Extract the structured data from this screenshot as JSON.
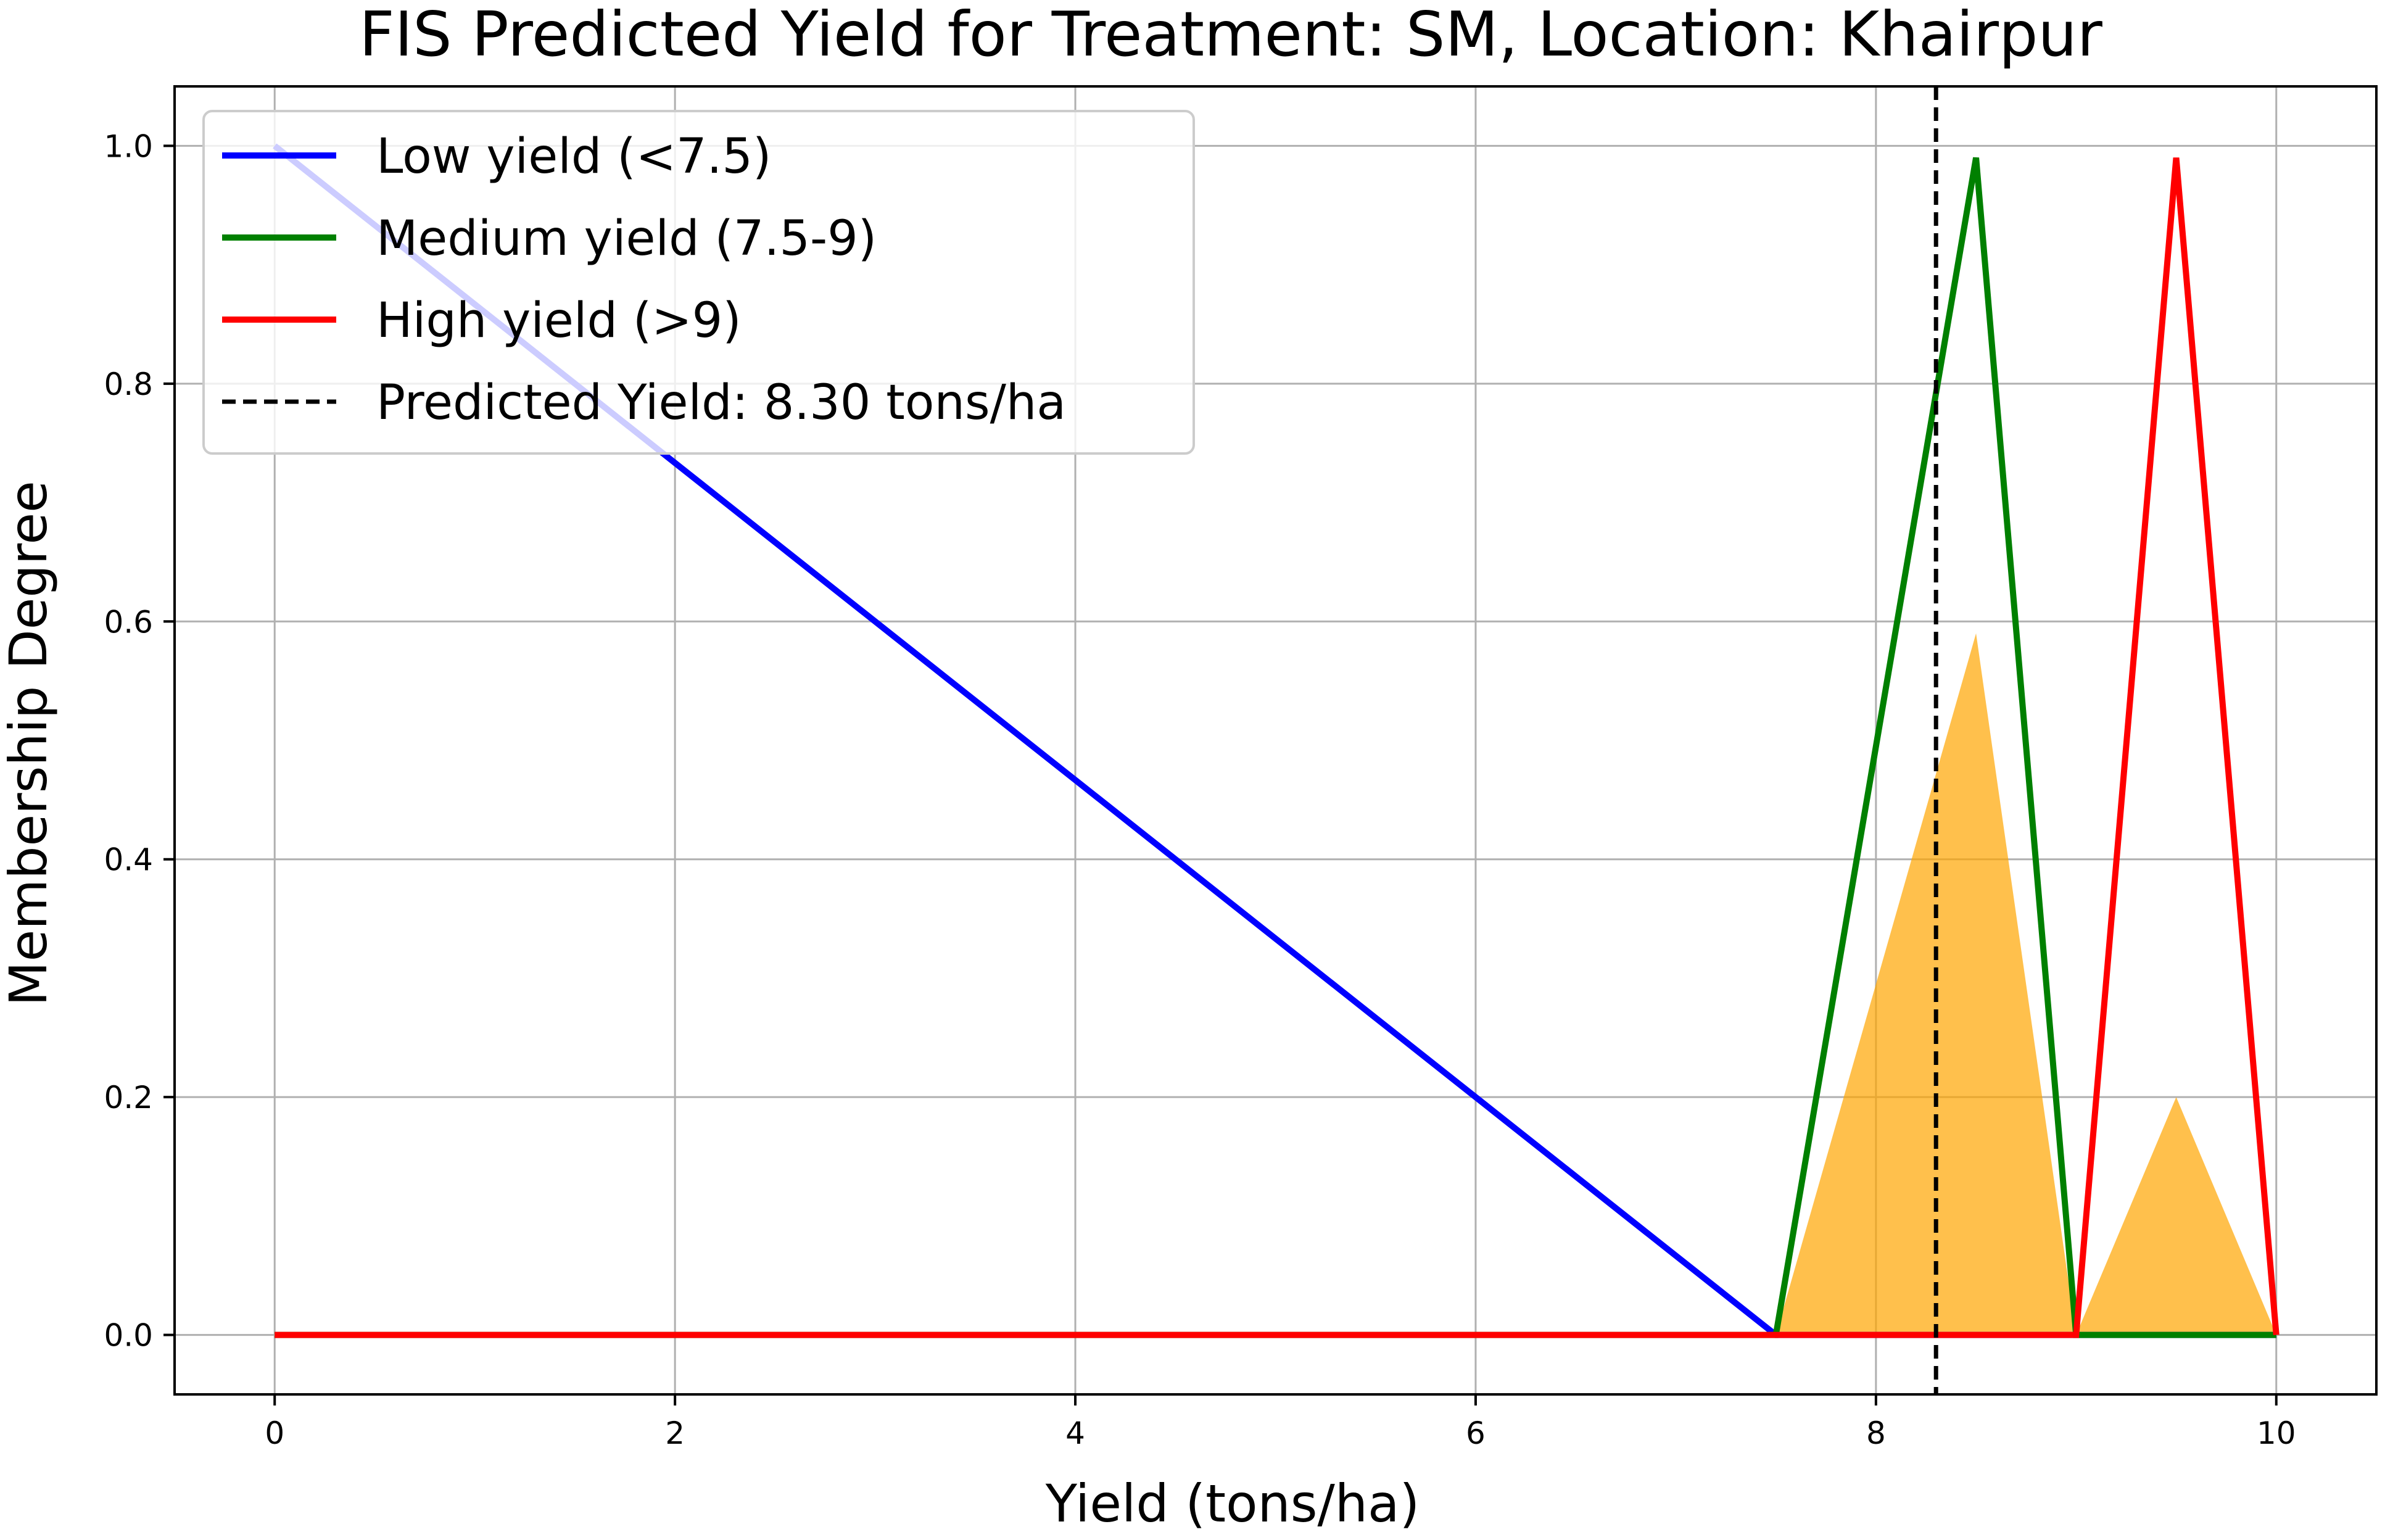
{
  "chart_data": {
    "type": "line",
    "title": "FIS Predicted Yield for Treatment: SM, Location: Khairpur",
    "xlabel": "Yield (tons/ha)",
    "ylabel": "Membership Degree",
    "xlim": [
      -0.5,
      10.5
    ],
    "ylim": [
      -0.05,
      1.05
    ],
    "x_ticks": [
      0,
      2,
      4,
      6,
      8,
      10
    ],
    "x_tick_labels": [
      "0",
      "2",
      "4",
      "6",
      "8",
      "10"
    ],
    "y_ticks": [
      0.0,
      0.2,
      0.4,
      0.6,
      0.8,
      1.0
    ],
    "y_tick_labels": [
      "0.0",
      "0.2",
      "0.4",
      "0.6",
      "0.8",
      "1.0"
    ],
    "grid": true,
    "legend_position": "upper-left",
    "series": [
      {
        "name": "Low yield (<7.5)",
        "color": "#0000ff",
        "x": [
          0,
          7.5,
          10
        ],
        "y": [
          1.0,
          0.0,
          0.0
        ]
      },
      {
        "name": "Medium yield (7.5-9)",
        "color": "#008000",
        "x": [
          0,
          7.5,
          8.5,
          9.0,
          10
        ],
        "y": [
          0.0,
          0.0,
          0.99,
          0.0,
          0.0
        ]
      },
      {
        "name": "High yield (>9)",
        "color": "#ff0000",
        "x": [
          0,
          9.0,
          9.5,
          10.0
        ],
        "y": [
          0.0,
          0.0,
          0.99,
          0.0
        ]
      }
    ],
    "aggregated_area": {
      "color": "#ffa500",
      "opacity": 0.7,
      "x": [
        7.5,
        8.5,
        9.0,
        9.5,
        10.0
      ],
      "y": [
        0.0,
        0.59,
        0.0,
        0.2,
        0.0
      ]
    },
    "predicted": {
      "label": "Predicted Yield: 8.30 tons/ha",
      "value": 8.3,
      "color": "#000000"
    }
  }
}
